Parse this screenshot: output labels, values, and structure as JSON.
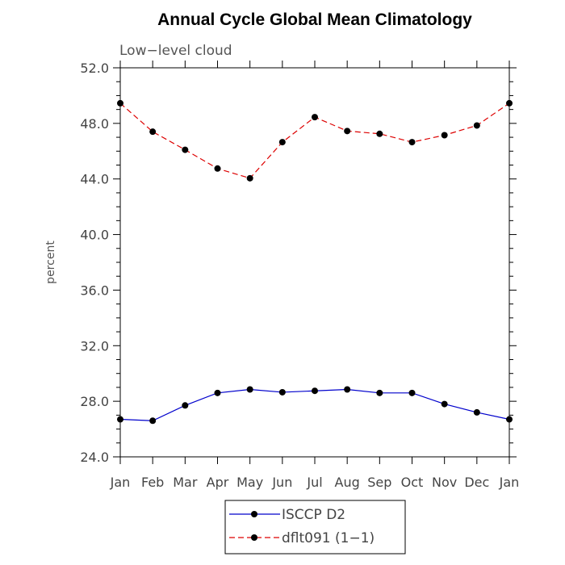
{
  "chart_data": {
    "type": "line",
    "title": "Annual Cycle Global Mean Climatology",
    "subtitle": "Low−level cloud",
    "ylabel": "percent",
    "xlabel": "",
    "categories": [
      "Jan",
      "Feb",
      "Mar",
      "Apr",
      "May",
      "Jun",
      "Jul",
      "Aug",
      "Sep",
      "Oct",
      "Nov",
      "Dec",
      "Jan"
    ],
    "ylim": [
      24.0,
      52.0
    ],
    "yticks": [
      24.0,
      28.0,
      32.0,
      36.0,
      40.0,
      44.0,
      48.0,
      52.0
    ],
    "ytick_labels": [
      "24.0",
      "28.0",
      "32.0",
      "36.0",
      "40.0",
      "44.0",
      "48.0",
      "52.0"
    ],
    "series": [
      {
        "name": "ISCCP D2",
        "color": "#0000cc",
        "dash": "solid",
        "marker": "filled-circle",
        "values": [
          26.7,
          26.6,
          27.7,
          28.6,
          28.85,
          28.65,
          28.75,
          28.85,
          28.6,
          28.6,
          27.8,
          27.2,
          26.7
        ]
      },
      {
        "name": "dflt091 (1−1)",
        "color": "#dd0000",
        "dash": "dashed",
        "marker": "filled-circle",
        "values": [
          49.45,
          47.4,
          46.1,
          44.75,
          44.05,
          46.65,
          48.45,
          47.45,
          47.25,
          46.65,
          47.15,
          47.85,
          49.45
        ]
      }
    ],
    "grid": false,
    "legend_position": "bottom-center"
  }
}
